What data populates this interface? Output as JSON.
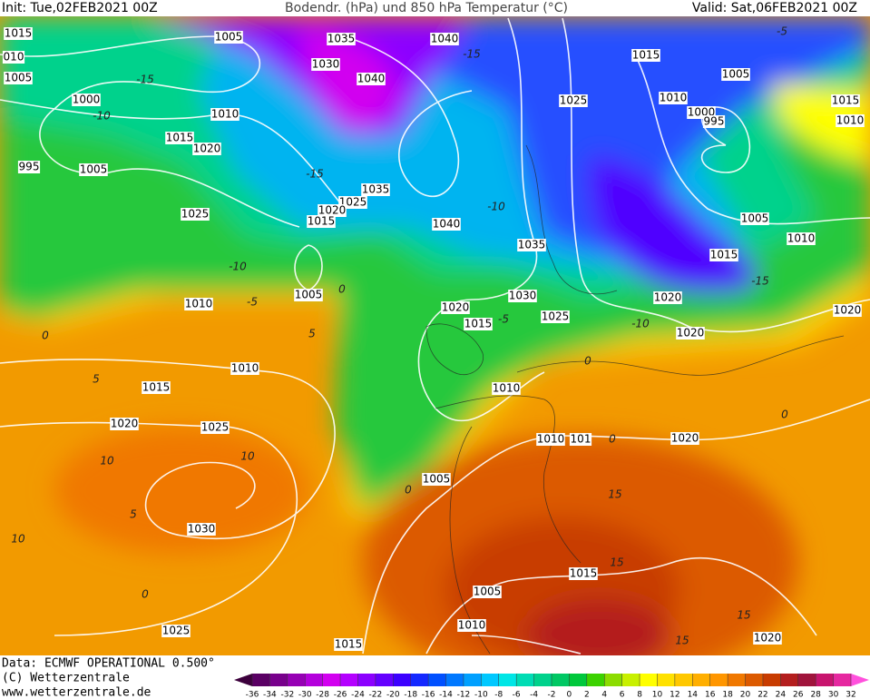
{
  "header": {
    "init": "Init: Tue,02FEB2021 00Z",
    "title": "Bodendr. (hPa) und 850 hPa Temperatur (°C)",
    "valid": "Valid: Sat,06FEB2021 00Z"
  },
  "isobar_labels": [
    "1015",
    "010",
    "1005",
    "1005",
    "1035",
    "1040",
    "1015",
    "1030",
    "1040",
    "1005",
    "1000",
    "1025",
    "1010",
    "1015",
    "1010",
    "1000",
    "995",
    "1010",
    "1015",
    "1020",
    "995",
    "1005",
    "1035",
    "1025",
    "1020",
    "1015",
    "1025",
    "1040",
    "1005",
    "1010",
    "1035",
    "1015",
    "1005",
    "1030",
    "1020",
    "1010",
    "1020",
    "1015",
    "1025",
    "1020",
    "1020",
    "1010",
    "1015",
    "1010",
    "1020",
    "1025",
    "1010",
    "101",
    "1020",
    "1005",
    "1030",
    "1015",
    "1005",
    "1010",
    "1025",
    "1020",
    "1015"
  ],
  "temperature_labels": [
    "-15",
    "-10",
    "-15",
    "-10",
    "-10",
    "-5",
    "-5",
    "-10",
    "-15",
    "0",
    "0",
    "5",
    "5",
    "-5",
    "10",
    "10",
    "15",
    "15",
    "15",
    "15",
    "5",
    "0",
    "10",
    "0",
    "0",
    "0",
    "0",
    "-15"
  ],
  "footer": {
    "data": "Data: ECMWF OPERATIONAL 0.500°",
    "copyright": "(C) Wetterzentrale",
    "url": "www.wetterzentrale.de"
  },
  "colorbar": {
    "ticks": [
      -36,
      -34,
      -32,
      -30,
      -28,
      -26,
      -24,
      -22,
      -20,
      -18,
      -16,
      -14,
      -12,
      -10,
      -8,
      -6,
      -4,
      -2,
      0,
      2,
      4,
      6,
      8,
      10,
      12,
      14,
      16,
      18,
      20,
      22,
      24,
      26,
      28,
      30,
      32
    ],
    "colors": [
      "#3c003c",
      "#5a0064",
      "#78008c",
      "#9600b4",
      "#b400dc",
      "#d200f0",
      "#b400ff",
      "#8c00ff",
      "#6400ff",
      "#3c00ff",
      "#1428ff",
      "#0050ff",
      "#0078ff",
      "#00a0ff",
      "#00c8ff",
      "#00e6e6",
      "#00dcb4",
      "#00d28c",
      "#00c864",
      "#00c83c",
      "#3cd200",
      "#8cdc00",
      "#c8f000",
      "#ffff00",
      "#ffe100",
      "#ffc800",
      "#ffaf00",
      "#ff9600",
      "#f07800",
      "#dc5a00",
      "#c83c00",
      "#b41e1e",
      "#a0143c",
      "#c8146e",
      "#e628a0",
      "#ff50dc"
    ]
  }
}
